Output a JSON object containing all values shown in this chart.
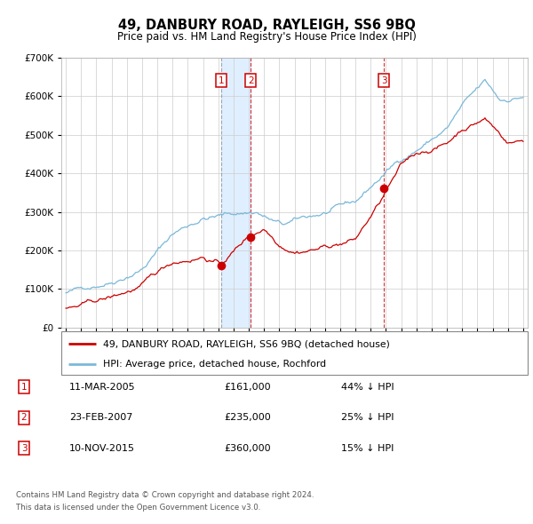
{
  "title": "49, DANBURY ROAD, RAYLEIGH, SS6 9BQ",
  "subtitle": "Price paid vs. HM Land Registry's House Price Index (HPI)",
  "transactions": [
    {
      "num": 1,
      "date_float": 2005.19,
      "price": 161000,
      "hpi_diff": "44% ↓ HPI",
      "date_label": "11-MAR-2005",
      "vline_style": "dashed_gray"
    },
    {
      "num": 2,
      "date_float": 2007.12,
      "price": 235000,
      "hpi_diff": "25% ↓ HPI",
      "date_label": "23-FEB-2007",
      "vline_style": "dashed_red"
    },
    {
      "num": 3,
      "date_float": 2015.86,
      "price": 360000,
      "hpi_diff": "15% ↓ HPI",
      "date_label": "10-NOV-2015",
      "vline_style": "dashed_red"
    }
  ],
  "legend_line1": "49, DANBURY ROAD, RAYLEIGH, SS6 9BQ (detached house)",
  "legend_line2": "HPI: Average price, detached house, Rochford",
  "footer1": "Contains HM Land Registry data © Crown copyright and database right 2024.",
  "footer2": "This data is licensed under the Open Government Licence v3.0.",
  "hpi_color": "#7ab8d9",
  "price_color": "#cc0000",
  "marker_color": "#cc0000",
  "vline_color_gray": "#888888",
  "vline_color_red": "#cc0000",
  "box_color": "#cc0000",
  "shade_color": "#ddeeff",
  "ylim": [
    0,
    700000
  ],
  "yticks": [
    0,
    100000,
    200000,
    300000,
    400000,
    500000,
    600000,
    700000
  ],
  "xmin": 1994.7,
  "xmax": 2025.3
}
